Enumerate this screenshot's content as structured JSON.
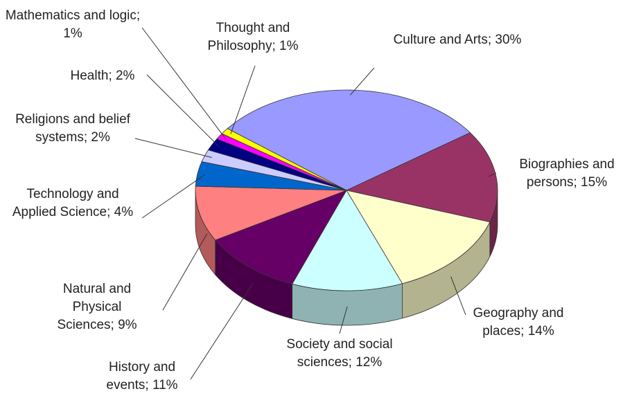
{
  "chart_data": {
    "type": "pie3d",
    "values": [
      30,
      15,
      14,
      12,
      11,
      9,
      4,
      2,
      2,
      1,
      1
    ],
    "value_labels": [
      "Culture and Arts; 30%",
      "Biographies and persons; 15%",
      "Geography and places; 14%",
      "Society and social sciences; 12%",
      "History and events; 11%",
      "Natural and Physical Sciences; 9%",
      "Technology and Applied Science; 4%",
      "Religions and belief systems; 2%",
      "Health; 2%",
      "Mathematics and logic; 1%",
      "Thought and Philosophy; 1%"
    ],
    "colors": [
      "#9999ff",
      "#993366",
      "#ffffcc",
      "#ccffff",
      "#660066",
      "#ff8080",
      "#0066cc",
      "#ccccff",
      "#000080",
      "#ff00ff",
      "#ffff00"
    ]
  }
}
